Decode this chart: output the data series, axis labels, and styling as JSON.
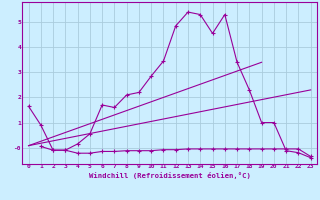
{
  "xlabel": "Windchill (Refroidissement éolien,°C)",
  "bg_color": "#cceeff",
  "line_color": "#990099",
  "grid_color": "#aaccdd",
  "xlim": [
    -0.5,
    23.5
  ],
  "ylim": [
    -0.65,
    5.8
  ],
  "xticks": [
    0,
    1,
    2,
    3,
    4,
    5,
    6,
    7,
    8,
    9,
    10,
    11,
    12,
    13,
    14,
    15,
    16,
    17,
    18,
    19,
    20,
    21,
    22,
    23
  ],
  "yticks": [
    0,
    1,
    2,
    3,
    4,
    5
  ],
  "ytick_labels": [
    "-0",
    "1",
    "2",
    "3",
    "4",
    "5"
  ],
  "line1_x": [
    0,
    1,
    2,
    3,
    4,
    5,
    6,
    7,
    8,
    9,
    10,
    11,
    12,
    13,
    14,
    15,
    16,
    17,
    18,
    19,
    20,
    21,
    22,
    23
  ],
  "line1_y": [
    1.65,
    0.9,
    -0.1,
    -0.1,
    -0.22,
    -0.22,
    -0.15,
    -0.15,
    -0.12,
    -0.12,
    -0.12,
    -0.08,
    -0.08,
    -0.05,
    -0.05,
    -0.05,
    -0.05,
    -0.05,
    -0.05,
    -0.05,
    -0.05,
    -0.05,
    -0.05,
    -0.35
  ],
  "line2_x": [
    1,
    2,
    3,
    4,
    5,
    6,
    7,
    8,
    9,
    10,
    11,
    12,
    13,
    14,
    15,
    16,
    17,
    18,
    19,
    20,
    21,
    22,
    23
  ],
  "line2_y": [
    0.05,
    -0.1,
    -0.1,
    0.15,
    0.55,
    1.7,
    1.6,
    2.1,
    2.2,
    2.85,
    3.45,
    4.85,
    5.4,
    5.3,
    4.55,
    5.3,
    3.4,
    2.3,
    1.0,
    1.0,
    -0.12,
    -0.2,
    -0.4
  ],
  "line3_x": [
    0,
    19
  ],
  "line3_y": [
    0.08,
    3.4
  ],
  "line4_x": [
    0,
    23
  ],
  "line4_y": [
    0.08,
    2.3
  ]
}
